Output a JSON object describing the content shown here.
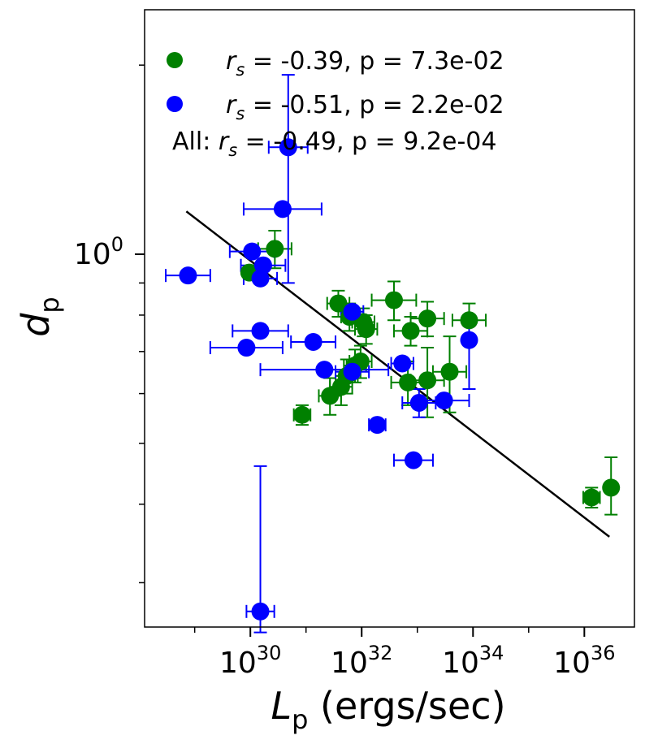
{
  "chart_data": {
    "type": "scatter",
    "xscale": "log",
    "yscale": "log",
    "xlabel": {
      "symbol": "L",
      "subscript": "p",
      "unit": " (ergs/sec)"
    },
    "ylabel": {
      "symbol": "d",
      "subscript": "p"
    },
    "xlim_log10": [
      28.1,
      36.9
    ],
    "ylim": [
      0.255,
      2.45
    ],
    "xticks": [
      {
        "base": "10",
        "exp": "30",
        "log10": 30
      },
      {
        "base": "10",
        "exp": "32",
        "log10": 32
      },
      {
        "base": "10",
        "exp": "34",
        "log10": 34
      },
      {
        "base": "10",
        "exp": "36",
        "log10": 36
      }
    ],
    "yticks": [
      {
        "base": "10",
        "exp": "0",
        "value": 1.0
      }
    ],
    "legend": {
      "placement": "upper-left",
      "entries": [
        {
          "color": "#008000",
          "symbol": "r",
          "sub": "s",
          "text": " = -0.39, p = 7.3e-02"
        },
        {
          "color": "#0000ff",
          "symbol": "r",
          "sub": "s",
          "text": " = -0.51, p = 2.2e-02"
        }
      ],
      "all_line": {
        "prefix": "All: ",
        "symbol": "r",
        "sub": "s",
        "text": " = -0.49, p = 9.2e-04"
      }
    },
    "fit_line": {
      "color": "#000000",
      "x_log10": [
        28.85,
        36.45
      ],
      "y": [
        1.17,
        0.355
      ]
    },
    "series": [
      {
        "name": "green",
        "color": "#008000",
        "points": [
          {
            "x": 30.44,
            "y": 1.02,
            "xerr": 0.3,
            "yerr_lo": 0.07,
            "yerr_hi": 0.07
          },
          {
            "x": 29.98,
            "y": 0.935,
            "xerr": 0,
            "yerr_lo": 0,
            "yerr_hi": 0
          },
          {
            "x": 31.58,
            "y": 0.835,
            "xerr": 0.2,
            "yerr_lo": 0.04,
            "yerr_hi": 0.04
          },
          {
            "x": 31.78,
            "y": 0.795,
            "xerr": 0.15,
            "yerr_lo": 0.04,
            "yerr_hi": 0.04
          },
          {
            "x": 32.58,
            "y": 0.845,
            "xerr": 0.4,
            "yerr_lo": 0.06,
            "yerr_hi": 0.06
          },
          {
            "x": 32.03,
            "y": 0.78,
            "xerr": 0.2,
            "yerr_lo": 0.04,
            "yerr_hi": 0.04
          },
          {
            "x": 32.08,
            "y": 0.76,
            "xerr": 0.2,
            "yerr_lo": 0.04,
            "yerr_hi": 0.04
          },
          {
            "x": 32.88,
            "y": 0.755,
            "xerr": 0.3,
            "yerr_lo": 0.04,
            "yerr_hi": 0.04
          },
          {
            "x": 33.18,
            "y": 0.79,
            "xerr": 0.3,
            "yerr_lo": 0.05,
            "yerr_hi": 0.05
          },
          {
            "x": 33.93,
            "y": 0.785,
            "xerr": 0.3,
            "yerr_lo": 0.05,
            "yerr_hi": 0.05
          },
          {
            "x": 31.98,
            "y": 0.675,
            "xerr": 0.2,
            "yerr_lo": 0.04,
            "yerr_hi": 0.04
          },
          {
            "x": 31.88,
            "y": 0.665,
            "xerr": 0.2,
            "yerr_lo": 0.04,
            "yerr_hi": 0.04
          },
          {
            "x": 31.73,
            "y": 0.64,
            "xerr": 0.2,
            "yerr_lo": 0.04,
            "yerr_hi": 0.04
          },
          {
            "x": 31.63,
            "y": 0.615,
            "xerr": 0.2,
            "yerr_lo": 0.04,
            "yerr_hi": 0.04
          },
          {
            "x": 31.43,
            "y": 0.595,
            "xerr": 0.2,
            "yerr_lo": 0.04,
            "yerr_hi": 0.04
          },
          {
            "x": 32.83,
            "y": 0.625,
            "xerr": 0.3,
            "yerr_lo": 0.05,
            "yerr_hi": 0.05
          },
          {
            "x": 33.18,
            "y": 0.63,
            "xerr": 0.3,
            "yerr_lo": 0.08,
            "yerr_hi": 0.08
          },
          {
            "x": 33.58,
            "y": 0.65,
            "xerr": 0.3,
            "yerr_lo": 0.09,
            "yerr_hi": 0.09
          },
          {
            "x": 30.93,
            "y": 0.555,
            "xerr": 0.15,
            "yerr_lo": 0.02,
            "yerr_hi": 0.02
          },
          {
            "x": 36.13,
            "y": 0.41,
            "xerr": 0.15,
            "yerr_lo": 0.015,
            "yerr_hi": 0.015
          },
          {
            "x": 36.48,
            "y": 0.425,
            "xerr": 0,
            "yerr_lo": 0.04,
            "yerr_hi": 0.05
          }
        ]
      },
      {
        "name": "blue",
        "color": "#0000ff",
        "points": [
          {
            "x": 30.68,
            "y": 1.48,
            "xerr": 0.35,
            "yerr_lo": 0.58,
            "yerr_hi": 0.45
          },
          {
            "x": 30.58,
            "y": 1.18,
            "xerr": 0.7,
            "yerr_lo": 0,
            "yerr_hi": 0
          },
          {
            "x": 30.03,
            "y": 1.01,
            "xerr": 0.4,
            "yerr_lo": 0,
            "yerr_hi": 0
          },
          {
            "x": 30.23,
            "y": 0.96,
            "xerr": 0.4,
            "yerr_lo": 0,
            "yerr_hi": 0
          },
          {
            "x": 30.18,
            "y": 0.915,
            "xerr": 0.3,
            "yerr_lo": 0,
            "yerr_hi": 0
          },
          {
            "x": 28.88,
            "y": 0.925,
            "xerr": 0.4,
            "yerr_lo": 0,
            "yerr_hi": 0
          },
          {
            "x": 31.83,
            "y": 0.81,
            "xerr": 0.2,
            "yerr_lo": 0,
            "yerr_hi": 0
          },
          {
            "x": 30.18,
            "y": 0.755,
            "xerr": 0.5,
            "yerr_lo": 0,
            "yerr_hi": 0
          },
          {
            "x": 31.13,
            "y": 0.725,
            "xerr": 0.4,
            "yerr_lo": 0,
            "yerr_hi": 0
          },
          {
            "x": 29.93,
            "y": 0.71,
            "xerr": 0.65,
            "yerr_lo": 0,
            "yerr_hi": 0
          },
          {
            "x": 33.93,
            "y": 0.73,
            "xerr": 0,
            "yerr_lo": 0.12,
            "yerr_hi": 0.06
          },
          {
            "x": 31.33,
            "y": 0.655,
            "xerr": 1.15,
            "yerr_lo": 0,
            "yerr_hi": 0
          },
          {
            "x": 31.83,
            "y": 0.65,
            "xerr": 0.3,
            "yerr_lo": 0,
            "yerr_hi": 0
          },
          {
            "x": 32.73,
            "y": 0.67,
            "xerr": 0.2,
            "yerr_lo": 0,
            "yerr_hi": 0
          },
          {
            "x": 33.03,
            "y": 0.58,
            "xerr": 0.3,
            "yerr_lo": 0.03,
            "yerr_hi": 0.03
          },
          {
            "x": 33.48,
            "y": 0.585,
            "xerr": 0.45,
            "yerr_lo": 0,
            "yerr_hi": 0
          },
          {
            "x": 32.28,
            "y": 0.535,
            "xerr": 0.15,
            "yerr_lo": 0,
            "yerr_hi": 0
          },
          {
            "x": 32.93,
            "y": 0.47,
            "xerr": 0.35,
            "yerr_lo": 0,
            "yerr_hi": 0
          },
          {
            "x": 30.18,
            "y": 0.27,
            "xerr": 0.25,
            "yerr_lo": 0.02,
            "yerr_hi": 0.19
          }
        ]
      }
    ]
  }
}
